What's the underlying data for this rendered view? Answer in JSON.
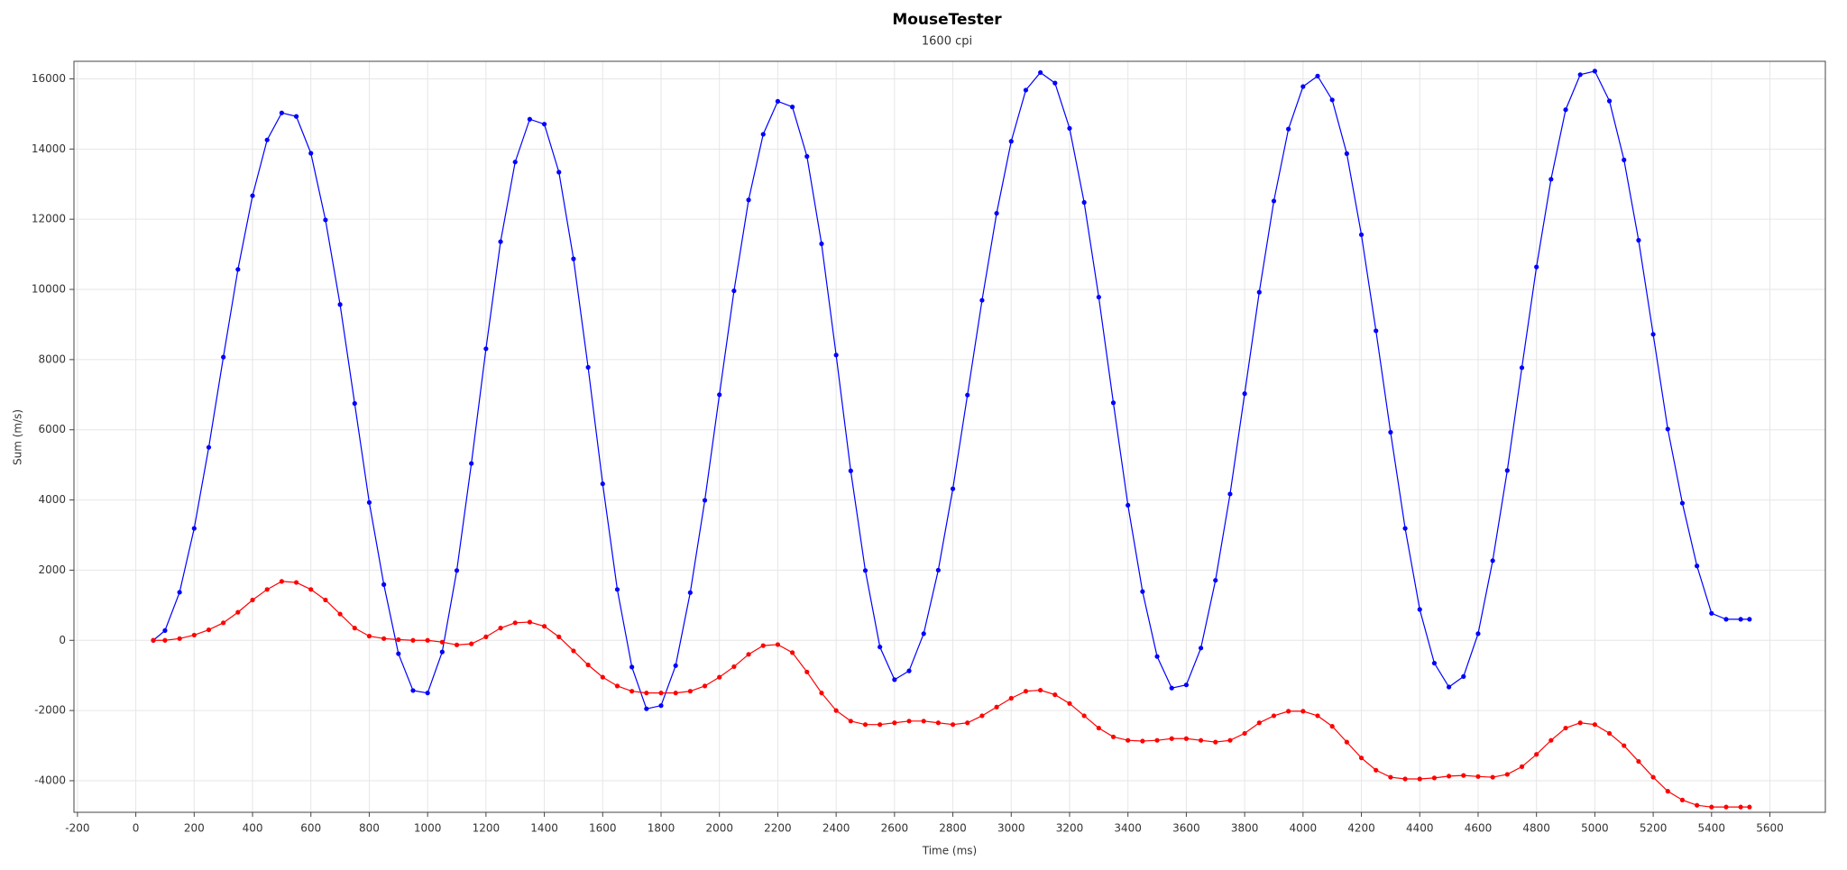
{
  "chart_data": {
    "type": "scatter-line",
    "title": "MouseTester",
    "subtitle": "1600 cpi",
    "x_label": "Time (ms)",
    "y_label": "Sum (m/s)",
    "xlim": [
      -212,
      5790
    ],
    "ylim": [
      -4900,
      16500
    ],
    "xticks": [
      -200,
      0,
      200,
      400,
      600,
      800,
      1000,
      1200,
      1400,
      1600,
      1800,
      2000,
      2200,
      2400,
      2600,
      2800,
      3000,
      3200,
      3400,
      3600,
      3800,
      4000,
      4200,
      4400,
      4600,
      4800,
      5000,
      5200,
      5400,
      5600
    ],
    "yticks": [
      -4000,
      -2000,
      0,
      2000,
      4000,
      6000,
      8000,
      10000,
      12000,
      14000,
      16000
    ],
    "grid": true,
    "x": [
      60,
      100,
      150,
      200,
      250,
      300,
      350,
      400,
      450,
      500,
      550,
      600,
      650,
      700,
      750,
      800,
      850,
      900,
      950,
      1000,
      1050,
      1100,
      1150,
      1200,
      1250,
      1300,
      1350,
      1400,
      1450,
      1500,
      1550,
      1600,
      1650,
      1700,
      1750,
      1800,
      1850,
      1900,
      1950,
      2000,
      2050,
      2100,
      2150,
      2200,
      2250,
      2300,
      2350,
      2400,
      2450,
      2500,
      2550,
      2600,
      2650,
      2700,
      2750,
      2800,
      2850,
      2900,
      2950,
      3000,
      3050,
      3100,
      3150,
      3200,
      3250,
      3300,
      3350,
      3400,
      3450,
      3500,
      3550,
      3600,
      3650,
      3700,
      3750,
      3800,
      3850,
      3900,
      3950,
      4000,
      4050,
      4100,
      4150,
      4200,
      4250,
      4300,
      4350,
      4400,
      4450,
      4500,
      4550,
      4600,
      4650,
      4700,
      4750,
      4800,
      4850,
      4900,
      4950,
      5000,
      5050,
      5100,
      5150,
      5200,
      5250,
      5300,
      5350,
      5400,
      5450,
      5500,
      5530
    ],
    "series": [
      {
        "color": "#0000ff",
        "values": [
          0,
          280,
          1370,
          3190,
          5500,
          8070,
          10570,
          12670,
          14260,
          15030,
          14930,
          13880,
          11980,
          9570,
          6750,
          3930,
          1590,
          -380,
          -1430,
          -1500,
          -330,
          1990,
          5040,
          8310,
          11360,
          13630,
          14850,
          14710,
          13340,
          10870,
          7780,
          4460,
          1450,
          -760,
          -1950,
          -1860,
          -720,
          1360,
          3990,
          7000,
          9960,
          12550,
          14420,
          15360,
          15200,
          13790,
          11300,
          8130,
          4830,
          1990,
          -190,
          -1120,
          -870,
          190,
          2000,
          4320,
          6990,
          9690,
          12170,
          14220,
          15680,
          16180,
          15880,
          14590,
          12480,
          9780,
          6770,
          3850,
          1390,
          -460,
          -1360,
          -1270,
          -220,
          1710,
          4170,
          7030,
          9920,
          12520,
          14570,
          15780,
          16080,
          15400,
          13870,
          11560,
          8820,
          5930,
          3190,
          880,
          -650,
          -1330,
          -1030,
          190,
          2270,
          4840,
          7770,
          10640,
          13140,
          15120,
          16120,
          16220,
          15370,
          13690,
          11400,
          8720,
          6020,
          3910,
          2120,
          770,
          600,
          600,
          600
        ]
      },
      {
        "color": "#ff0000",
        "values": [
          0,
          0,
          50,
          150,
          300,
          500,
          800,
          1150,
          1450,
          1680,
          1650,
          1450,
          1150,
          750,
          350,
          120,
          50,
          20,
          0,
          0,
          -50,
          -130,
          -100,
          100,
          350,
          500,
          520,
          400,
          100,
          -300,
          -700,
          -1050,
          -1300,
          -1450,
          -1500,
          -1500,
          -1500,
          -1450,
          -1300,
          -1050,
          -750,
          -400,
          -150,
          -120,
          -350,
          -900,
          -1500,
          -2000,
          -2300,
          -2400,
          -2400,
          -2350,
          -2300,
          -2300,
          -2350,
          -2400,
          -2350,
          -2150,
          -1900,
          -1650,
          -1450,
          -1420,
          -1550,
          -1800,
          -2150,
          -2500,
          -2750,
          -2850,
          -2870,
          -2850,
          -2800,
          -2800,
          -2850,
          -2900,
          -2850,
          -2650,
          -2350,
          -2150,
          -2020,
          -2020,
          -2150,
          -2450,
          -2900,
          -3350,
          -3700,
          -3900,
          -3950,
          -3950,
          -3920,
          -3870,
          -3850,
          -3880,
          -3900,
          -3820,
          -3600,
          -3250,
          -2850,
          -2500,
          -2350,
          -2400,
          -2650,
          -3000,
          -3450,
          -3900,
          -4300,
          -4550,
          -4700,
          -4750,
          -4750,
          -4750,
          -4750
        ]
      }
    ]
  }
}
